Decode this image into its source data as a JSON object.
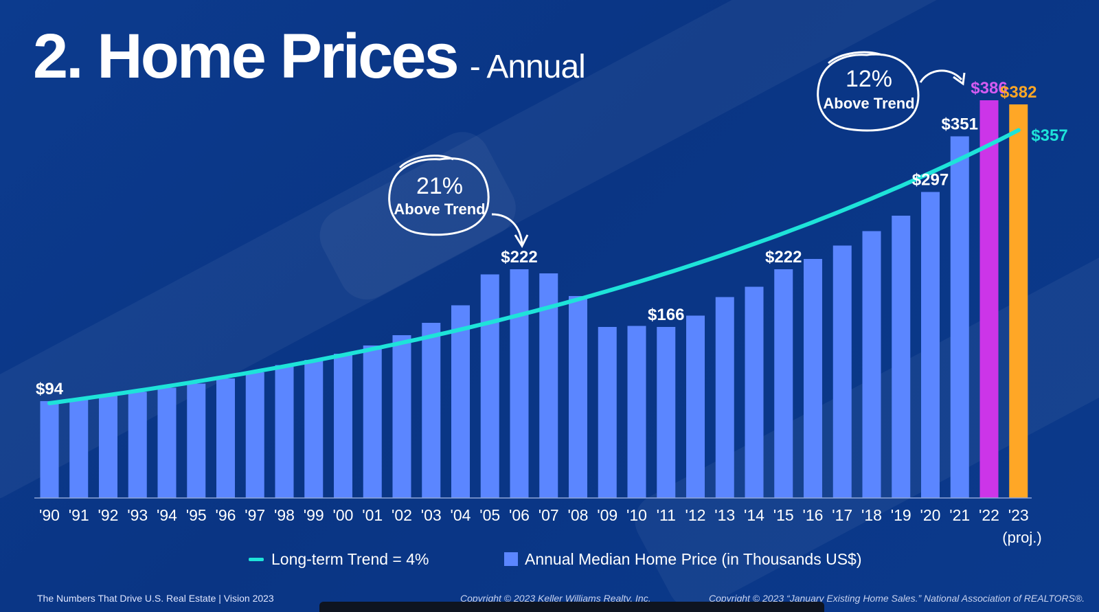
{
  "title": {
    "main": "2. Home Prices",
    "sub": "- Annual"
  },
  "chart_data": {
    "type": "bar",
    "categories": [
      "'90",
      "'91",
      "'92",
      "'93",
      "'94",
      "'95",
      "'96",
      "'97",
      "'98",
      "'99",
      "'00",
      "'01",
      "'02",
      "'03",
      "'04",
      "'05",
      "'06",
      "'07",
      "'08",
      "'09",
      "'10",
      "'11",
      "'12",
      "'13",
      "'14",
      "'15",
      "'16",
      "'17",
      "'18",
      "'19",
      "'20",
      "'21",
      "'22",
      "'23"
    ],
    "category_note": "(proj.)",
    "values": [
      94,
      96,
      99,
      103,
      107,
      111,
      116,
      122,
      129,
      134,
      140,
      148,
      158,
      170,
      187,
      217,
      222,
      218,
      196,
      166,
      167,
      166,
      177,
      195,
      205,
      222,
      232,
      245,
      259,
      274,
      297,
      351,
      386,
      382
    ],
    "bar_colors": {
      "default": "#5b86ff",
      "2022": "#cc35e8",
      "2023": "#ffa726"
    },
    "trend": {
      "start": 92,
      "end": 357,
      "color": "#1ee3d9"
    },
    "ylim": [
      0,
      400
    ],
    "data_labels": [
      {
        "index": 0,
        "text": "$94",
        "color": "#ffffff"
      },
      {
        "index": 16,
        "text": "$222",
        "color": "#ffffff"
      },
      {
        "index": 21,
        "text": "$166",
        "color": "#ffffff"
      },
      {
        "index": 25,
        "text": "$222",
        "color": "#ffffff"
      },
      {
        "index": 30,
        "text": "$297",
        "color": "#ffffff"
      },
      {
        "index": 31,
        "text": "$351",
        "color": "#ffffff"
      },
      {
        "index": 32,
        "text": "$386",
        "color": "#d65cf2"
      },
      {
        "index": 33,
        "text": "$382",
        "color": "#ffa726"
      }
    ],
    "trend_label": {
      "text": "$357",
      "color": "#1ee3d9"
    },
    "callouts": [
      {
        "pct": "21%",
        "text": "Above Trend"
      },
      {
        "pct": "12%",
        "text": "Above Trend"
      }
    ],
    "legend": [
      {
        "label": "Long-term Trend = 4%",
        "color": "#1ee3d9",
        "kind": "line"
      },
      {
        "label": "Annual Median Home Price (in Thousands US$)",
        "color": "#5b86ff",
        "kind": "square"
      }
    ]
  },
  "footer": {
    "left": "The Numbers That Drive U.S. Real Estate  |  Vision 2023",
    "middle": "Copyright © 2023 Keller Williams Realty, Inc.",
    "right": "Copyright © 2023 “January Existing Home Sales.” National Association of REALTORS®."
  }
}
